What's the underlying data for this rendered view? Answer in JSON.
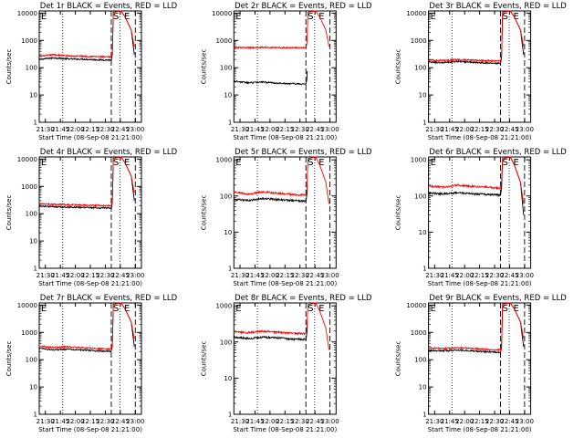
{
  "colors": {
    "events": "#000000",
    "lld": "#ff0000",
    "background": "#ffffff"
  },
  "chart_data": [
    {
      "type": "line",
      "title": "Det 1r BLACK = Events, RED = LLD",
      "xlabel": "Start Time (08-Sep-08 21:21:00)",
      "ylabel": "Counts/sec",
      "yscale": "log",
      "ylim": [
        1,
        12000
      ],
      "x_ticks": [
        "21:30",
        "21:45",
        "22:00",
        "22:15",
        "22:30",
        "22:45",
        "23:00"
      ],
      "y_ticks": [
        "1",
        "10",
        "100",
        "1000",
        "10000"
      ],
      "markers": [
        "S",
        "E"
      ],
      "series": [
        {
          "name": "Events",
          "color": "#000000",
          "levels": [
            200,
            230,
            210,
            205,
            195,
            190
          ]
        },
        {
          "name": "LLD",
          "color": "#ff0000",
          "levels": [
            260,
            300,
            270,
            265,
            255,
            245
          ]
        }
      ]
    },
    {
      "type": "line",
      "title": "Det 2r BLACK = Events, RED = LLD",
      "xlabel": "Start Time (08-Sep-08 21:21:00)",
      "ylabel": "Counts/sec",
      "yscale": "log",
      "ylim": [
        1,
        12000
      ],
      "x_ticks": [
        "21:30",
        "21:45",
        "22:00",
        "22:15",
        "22:30",
        "22:45",
        "23:00"
      ],
      "y_ticks": [
        "1",
        "10",
        "100",
        "1000",
        "10000"
      ],
      "markers": [
        "S",
        "E"
      ],
      "series": [
        {
          "name": "Events",
          "color": "#000000",
          "levels": [
            32,
            28,
            30,
            27,
            26,
            25
          ]
        },
        {
          "name": "LLD",
          "color": "#ff0000",
          "levels": [
            550,
            540,
            560,
            545,
            540,
            535
          ]
        }
      ]
    },
    {
      "type": "line",
      "title": "Det 3r BLACK = Events, RED = LLD",
      "xlabel": "Start Time (08-Sep-08 21:21:00)",
      "ylabel": "Counts/sec",
      "yscale": "log",
      "ylim": [
        1,
        12000
      ],
      "x_ticks": [
        "21:30",
        "21:45",
        "22:00",
        "22:15",
        "22:30",
        "22:45",
        "23:00"
      ],
      "y_ticks": [
        "1",
        "10",
        "100",
        "1000",
        "10000"
      ],
      "markers": [
        "S",
        "E"
      ],
      "series": [
        {
          "name": "Events",
          "color": "#000000",
          "levels": [
            160,
            155,
            170,
            160,
            150,
            145
          ]
        },
        {
          "name": "LLD",
          "color": "#ff0000",
          "levels": [
            190,
            185,
            200,
            190,
            180,
            175
          ]
        }
      ]
    },
    {
      "type": "line",
      "title": "Det 4r BLACK = Events, RED = LLD",
      "xlabel": "Start Time (08-Sep-08 21:21:00)",
      "ylabel": "Counts/sec",
      "yscale": "log",
      "ylim": [
        1,
        12000
      ],
      "x_ticks": [
        "21:30",
        "21:45",
        "22:00",
        "22:15",
        "22:30",
        "22:45",
        "23:00"
      ],
      "y_ticks": [
        "1",
        "10",
        "100",
        "1000",
        "10000"
      ],
      "markers": [
        "S",
        "E"
      ],
      "series": [
        {
          "name": "Events",
          "color": "#000000",
          "levels": [
            190,
            180,
            175,
            170,
            165,
            160
          ]
        },
        {
          "name": "LLD",
          "color": "#ff0000",
          "levels": [
            230,
            220,
            215,
            205,
            200,
            195
          ]
        }
      ]
    },
    {
      "type": "line",
      "title": "Det 5r BLACK = Events, RED = LLD",
      "xlabel": "Start Time (08-Sep-08 21:21:00)",
      "ylabel": "Counts/sec",
      "yscale": "log",
      "ylim": [
        1,
        1200
      ],
      "x_ticks": [
        "21:30",
        "21:45",
        "22:00",
        "22:15",
        "22:30",
        "22:45",
        "23:00"
      ],
      "y_ticks": [
        "1",
        "10",
        "100",
        "1000"
      ],
      "markers": [
        "S",
        "E"
      ],
      "series": [
        {
          "name": "Events",
          "color": "#000000",
          "levels": [
            80,
            75,
            85,
            80,
            75,
            72
          ]
        },
        {
          "name": "LLD",
          "color": "#ff0000",
          "levels": [
            130,
            110,
            130,
            120,
            110,
            105
          ]
        }
      ]
    },
    {
      "type": "line",
      "title": "Det 6r BLACK = Events, RED = LLD",
      "xlabel": "Start Time (08-Sep-08 21:21:00)",
      "ylabel": "Counts/sec",
      "yscale": "log",
      "ylim": [
        1,
        1200
      ],
      "x_ticks": [
        "21:30",
        "21:45",
        "22:00",
        "22:15",
        "22:30",
        "22:45",
        "23:00"
      ],
      "y_ticks": [
        "1",
        "10",
        "100",
        "1000"
      ],
      "markers": [
        "S",
        "E"
      ],
      "series": [
        {
          "name": "Events",
          "color": "#000000",
          "levels": [
            120,
            115,
            125,
            115,
            110,
            105
          ]
        },
        {
          "name": "LLD",
          "color": "#ff0000",
          "levels": [
            190,
            175,
            200,
            185,
            175,
            165
          ]
        }
      ]
    },
    {
      "type": "line",
      "title": "Det 7r BLACK = Events, RED = LLD",
      "xlabel": "Start Time (08-Sep-08 21:21:00)",
      "ylabel": "Counts/sec",
      "yscale": "log",
      "ylim": [
        1,
        12000
      ],
      "x_ticks": [
        "21:30",
        "21:45",
        "22:00",
        "22:15",
        "22:30",
        "22:45",
        "23:00"
      ],
      "y_ticks": [
        "1",
        "10",
        "100",
        "1000",
        "10000"
      ],
      "markers": [
        "S",
        "E"
      ],
      "series": [
        {
          "name": "Events",
          "color": "#000000",
          "levels": [
            260,
            230,
            245,
            225,
            210,
            200
          ]
        },
        {
          "name": "LLD",
          "color": "#ff0000",
          "levels": [
            310,
            280,
            300,
            275,
            255,
            245
          ]
        }
      ]
    },
    {
      "type": "line",
      "title": "Det 8r BLACK = Events, RED = LLD",
      "xlabel": "Start Time (08-Sep-08 21:21:00)",
      "ylabel": "Counts/sec",
      "yscale": "log",
      "ylim": [
        1,
        1200
      ],
      "x_ticks": [
        "21:30",
        "21:45",
        "22:00",
        "22:15",
        "22:30",
        "22:45",
        "23:00"
      ],
      "y_ticks": [
        "1",
        "10",
        "100",
        "1000"
      ],
      "markers": [
        "S",
        "E"
      ],
      "series": [
        {
          "name": "Events",
          "color": "#000000",
          "levels": [
            135,
            125,
            135,
            130,
            120,
            118
          ]
        },
        {
          "name": "LLD",
          "color": "#ff0000",
          "levels": [
            190,
            180,
            200,
            185,
            175,
            170
          ]
        }
      ]
    },
    {
      "type": "line",
      "title": "Det 9r BLACK = Events, RED = LLD",
      "xlabel": "Start Time (08-Sep-08 21:21:00)",
      "ylabel": "Counts/sec",
      "yscale": "log",
      "ylim": [
        1,
        12000
      ],
      "x_ticks": [
        "21:30",
        "21:45",
        "22:00",
        "22:15",
        "22:30",
        "22:45",
        "23:00"
      ],
      "y_ticks": [
        "1",
        "10",
        "100",
        "1000",
        "10000"
      ],
      "markers": [
        "S",
        "E"
      ],
      "series": [
        {
          "name": "Events",
          "color": "#000000",
          "levels": [
            220,
            210,
            225,
            210,
            195,
            185
          ]
        },
        {
          "name": "LLD",
          "color": "#ff0000",
          "levels": [
            270,
            255,
            275,
            260,
            240,
            230
          ]
        }
      ]
    }
  ]
}
